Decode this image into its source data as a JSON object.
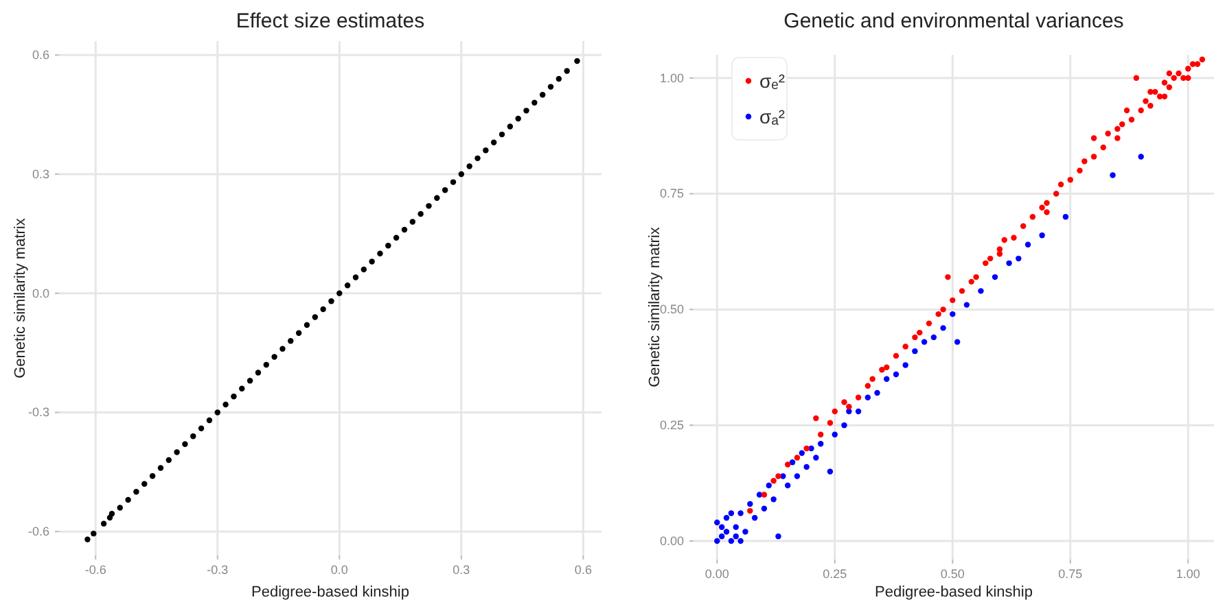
{
  "chart_data": [
    {
      "type": "scatter",
      "title": "Effect size estimates",
      "xlabel": "Pedigree-based kinship",
      "ylabel": "Genetic similarity matrix",
      "xlim": [
        -0.69,
        0.645
      ],
      "ylim": [
        -0.66,
        0.635
      ],
      "xticks": [
        {
          "value": -0.6,
          "label": "-0.6"
        },
        {
          "value": -0.3,
          "label": "-0.3"
        },
        {
          "value": 0,
          "label": "0.0"
        },
        {
          "value": 0.3,
          "label": "0.3"
        },
        {
          "value": 0.6,
          "label": "0.6"
        }
      ],
      "yticks": [
        {
          "value": -0.6,
          "label": "-0.6"
        },
        {
          "value": -0.3,
          "label": "-0.3"
        },
        {
          "value": 0,
          "label": "0.0"
        },
        {
          "value": 0.3,
          "label": "0.3"
        },
        {
          "value": 0.6,
          "label": "0.6"
        }
      ],
      "grid": true,
      "marker": "circle",
      "legend": false,
      "series": [
        {
          "color": "#000000",
          "x": [
            -0.62,
            -0.605,
            -0.58,
            -0.565,
            -0.56,
            -0.54,
            -0.52,
            -0.5,
            -0.48,
            -0.46,
            -0.44,
            -0.42,
            -0.4,
            -0.38,
            -0.36,
            -0.34,
            -0.32,
            -0.3,
            -0.28,
            -0.26,
            -0.24,
            -0.22,
            -0.2,
            -0.18,
            -0.16,
            -0.14,
            -0.12,
            -0.1,
            -0.08,
            -0.06,
            -0.04,
            -0.02,
            0,
            0.02,
            0.04,
            0.06,
            0.08,
            0.1,
            0.12,
            0.14,
            0.16,
            0.18,
            0.2,
            0.22,
            0.24,
            0.26,
            0.28,
            0.3,
            0.32,
            0.34,
            0.36,
            0.38,
            0.4,
            0.42,
            0.44,
            0.46,
            0.48,
            0.5,
            0.52,
            0.54,
            0.56,
            0.585
          ],
          "values": [
            -0.62,
            -0.605,
            -0.58,
            -0.565,
            -0.555,
            -0.54,
            -0.52,
            -0.5,
            -0.48,
            -0.46,
            -0.44,
            -0.42,
            -0.4,
            -0.38,
            -0.36,
            -0.34,
            -0.32,
            -0.3,
            -0.28,
            -0.26,
            -0.24,
            -0.22,
            -0.2,
            -0.18,
            -0.16,
            -0.14,
            -0.12,
            -0.1,
            -0.08,
            -0.06,
            -0.04,
            -0.02,
            0,
            0.02,
            0.04,
            0.06,
            0.08,
            0.1,
            0.12,
            0.14,
            0.16,
            0.18,
            0.2,
            0.22,
            0.24,
            0.26,
            0.28,
            0.3,
            0.32,
            0.34,
            0.36,
            0.38,
            0.4,
            0.42,
            0.44,
            0.46,
            0.48,
            0.5,
            0.52,
            0.54,
            0.56,
            0.585
          ]
        }
      ]
    },
    {
      "type": "scatter",
      "title": "Genetic and environmental variances",
      "xlabel": "Pedigree-based kinship",
      "ylabel": "Genetic similarity matrix",
      "xlim": [
        -0.05,
        1.055
      ],
      "ylim": [
        -0.04,
        1.05
      ],
      "xticks": [
        {
          "value": 0,
          "label": "0.00"
        },
        {
          "value": 0.25,
          "label": "0.25"
        },
        {
          "value": 0.5,
          "label": "0.50"
        },
        {
          "value": 0.75,
          "label": "0.75"
        },
        {
          "value": 1,
          "label": "1.00"
        }
      ],
      "yticks": [
        {
          "value": 0,
          "label": "0.00"
        },
        {
          "value": 0.25,
          "label": "0.25"
        },
        {
          "value": 0.5,
          "label": "0.50"
        },
        {
          "value": 0.75,
          "label": "0.75"
        },
        {
          "value": 1,
          "label": "1.00"
        }
      ],
      "grid": true,
      "marker": "circle",
      "legend": "top left",
      "series": [
        {
          "name": "σₑ²",
          "color": "#ff0000",
          "x": [
            0.07,
            0.1,
            0.12,
            0.13,
            0.15,
            0.17,
            0.19,
            0.21,
            0.22,
            0.24,
            0.25,
            0.27,
            0.28,
            0.3,
            0.32,
            0.33,
            0.35,
            0.36,
            0.38,
            0.4,
            0.42,
            0.43,
            0.45,
            0.47,
            0.48,
            0.49,
            0.5,
            0.52,
            0.54,
            0.55,
            0.57,
            0.58,
            0.6,
            0.6,
            0.61,
            0.63,
            0.65,
            0.67,
            0.69,
            0.7,
            0.7,
            0.72,
            0.73,
            0.75,
            0.77,
            0.78,
            0.8,
            0.8,
            0.82,
            0.83,
            0.85,
            0.85,
            0.86,
            0.87,
            0.88,
            0.89,
            0.9,
            0.91,
            0.92,
            0.92,
            0.93,
            0.94,
            0.95,
            0.95,
            0.96,
            0.96,
            0.97,
            0.98,
            0.99,
            1,
            1,
            1.01,
            1.02,
            1.03
          ],
          "values": [
            0.065,
            0.1,
            0.13,
            0.14,
            0.165,
            0.18,
            0.2,
            0.265,
            0.23,
            0.255,
            0.28,
            0.3,
            0.29,
            0.31,
            0.335,
            0.35,
            0.37,
            0.375,
            0.4,
            0.42,
            0.44,
            0.45,
            0.47,
            0.49,
            0.5,
            0.57,
            0.52,
            0.54,
            0.56,
            0.57,
            0.6,
            0.61,
            0.63,
            0.62,
            0.65,
            0.655,
            0.68,
            0.7,
            0.72,
            0.73,
            0.71,
            0.75,
            0.77,
            0.78,
            0.8,
            0.82,
            0.83,
            0.87,
            0.85,
            0.88,
            0.89,
            0.87,
            0.9,
            0.93,
            0.91,
            1,
            0.93,
            0.95,
            0.94,
            0.97,
            0.97,
            0.96,
            0.99,
            0.96,
            0.98,
            1.01,
            1,
            1.01,
            1,
            1.02,
            1,
            1.03,
            1.03,
            1.04
          ]
        },
        {
          "name": "σₐ²",
          "color": "#0000ff",
          "x": [
            0,
            0.01,
            0.02,
            0.01,
            0.03,
            0.02,
            0.04,
            0.05,
            0.05,
            0.06,
            0.07,
            0.08,
            0.09,
            0.1,
            0.11,
            0.12,
            0.13,
            0.14,
            0.15,
            0.16,
            0.17,
            0.18,
            0.19,
            0.2,
            0.21,
            0.22,
            0.24,
            0.25,
            0.27,
            0.28,
            0.3,
            0.32,
            0.34,
            0.36,
            0.38,
            0.4,
            0.42,
            0.44,
            0.46,
            0.48,
            0.5,
            0.51,
            0.53,
            0.56,
            0.59,
            0.62,
            0.64,
            0.66,
            0.69,
            0.74,
            0.84,
            0.9,
            0.03,
            0,
            0.04
          ],
          "values": [
            0,
            0.03,
            0.05,
            0.01,
            0,
            0.02,
            0.03,
            0.06,
            0,
            0.02,
            0.08,
            0.05,
            0.1,
            0.07,
            0.12,
            0.09,
            0.01,
            0.14,
            0.12,
            0.17,
            0.14,
            0.19,
            0.16,
            0.2,
            0.18,
            0.21,
            0.15,
            0.23,
            0.25,
            0.28,
            0.28,
            0.31,
            0.32,
            0.35,
            0.36,
            0.38,
            0.41,
            0.43,
            0.44,
            0.46,
            0.49,
            0.43,
            0.51,
            0.54,
            0.57,
            0.6,
            0.61,
            0.64,
            0.66,
            0.7,
            0.79,
            0.83,
            0.06,
            0.04,
            0.01
          ]
        }
      ]
    }
  ]
}
